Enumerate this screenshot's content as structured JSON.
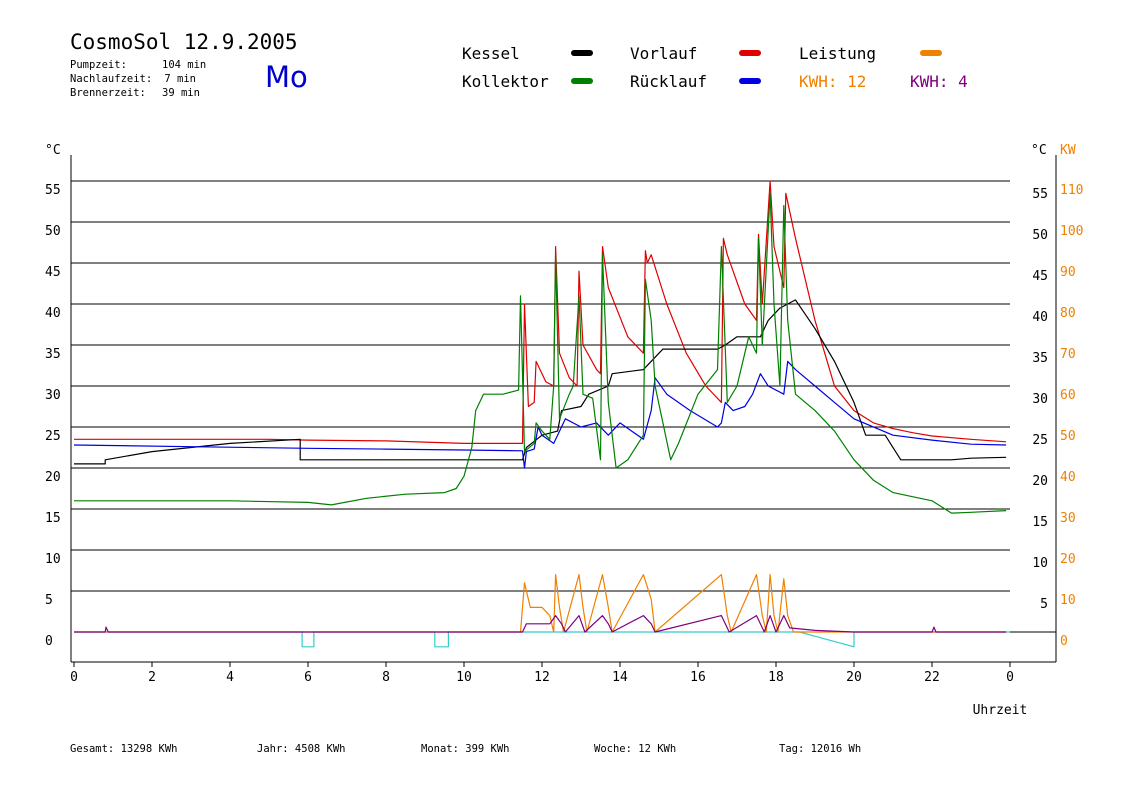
{
  "header": {
    "title": "CosmoSol 12.9.2005",
    "day": "Mo",
    "rows": [
      {
        "label": "Pumpzeit:",
        "value": "104 min"
      },
      {
        "label": "Nachlaufzeit:",
        "value": "7 min"
      },
      {
        "label": "Brennerzeit:",
        "value": "39 min"
      }
    ]
  },
  "legend": {
    "kessel": "Kessel",
    "kollektor": "Kollektor",
    "vorlauf": "Vorlauf",
    "ruecklauf": "Rücklauf",
    "leistung": "Leistung",
    "kwh1": "KWH: 12",
    "kwh2": "KWH: 4"
  },
  "colors": {
    "kessel": "#000000",
    "kollektor": "#008000",
    "vorlauf": "#e00000",
    "ruecklauf": "#0000e0",
    "leistung": "#f08000",
    "kwh2": "#800080",
    "baseline": "#33cccc"
  },
  "footer": {
    "gesamt": "Gesamt:  13298 KWh",
    "jahr": "Jahr:   4508 KWh",
    "monat": "Monat:    399 KWh",
    "woche": "Woche:     12 KWh",
    "tag": "Tag:  12016 Wh"
  },
  "chart_data": {
    "type": "line",
    "xlabel": "Uhrzeit",
    "ylabel_left": "°C",
    "ylabel_right_c": "°C",
    "ylabel_right_kw": "KW",
    "xlim": [
      0,
      24
    ],
    "ylim": [
      -5,
      60
    ],
    "x_ticks": [
      "0",
      "2",
      "4",
      "6",
      "8",
      "10",
      "12",
      "14",
      "16",
      "18",
      "20",
      "22",
      "0"
    ],
    "y_ticks_left": [
      0,
      5,
      10,
      15,
      20,
      25,
      30,
      35,
      40,
      45,
      50,
      55
    ],
    "y_ticks_right_c": [
      5,
      10,
      15,
      20,
      25,
      30,
      35,
      40,
      45,
      50,
      55
    ],
    "y_ticks_right_kw": [
      0,
      10,
      20,
      30,
      40,
      50,
      60,
      70,
      80,
      90,
      100,
      110
    ],
    "grid": true,
    "series": [
      {
        "name": "Vorlauf",
        "key": "vorlauf",
        "points": [
          [
            0,
            23.5
          ],
          [
            5,
            23.5
          ],
          [
            6,
            23.4
          ],
          [
            8,
            23.3
          ],
          [
            10,
            23
          ],
          [
            11.5,
            23
          ],
          [
            11.55,
            40
          ],
          [
            11.65,
            27.5
          ],
          [
            11.8,
            28
          ],
          [
            11.85,
            33
          ],
          [
            12.1,
            30.5
          ],
          [
            12.3,
            30
          ],
          [
            12.35,
            47
          ],
          [
            12.45,
            34
          ],
          [
            12.7,
            31
          ],
          [
            12.9,
            30
          ],
          [
            12.95,
            44
          ],
          [
            13.05,
            35
          ],
          [
            13.4,
            32
          ],
          [
            13.5,
            31.5
          ],
          [
            13.55,
            47
          ],
          [
            13.7,
            42
          ],
          [
            14.2,
            36
          ],
          [
            14.6,
            34
          ],
          [
            14.65,
            46.5
          ],
          [
            14.7,
            45
          ],
          [
            14.8,
            46
          ],
          [
            15.2,
            40
          ],
          [
            15.7,
            34
          ],
          [
            16.2,
            30
          ],
          [
            16.6,
            28
          ],
          [
            16.65,
            48
          ],
          [
            16.75,
            46
          ],
          [
            17.2,
            40
          ],
          [
            17.5,
            38
          ],
          [
            17.55,
            48.5
          ],
          [
            17.65,
            40
          ],
          [
            17.85,
            55
          ],
          [
            17.95,
            47
          ],
          [
            18.2,
            42
          ],
          [
            18.25,
            53.5
          ],
          [
            18.5,
            48
          ],
          [
            19,
            38
          ],
          [
            19.5,
            30
          ],
          [
            20,
            27
          ],
          [
            20.5,
            25.5
          ],
          [
            21,
            24.8
          ],
          [
            21.5,
            24.3
          ],
          [
            22,
            23.9
          ],
          [
            23,
            23.5
          ],
          [
            23.9,
            23.2
          ]
        ]
      },
      {
        "name": "Kessel",
        "key": "kessel",
        "points": [
          [
            0,
            20.5
          ],
          [
            0.8,
            20.5
          ],
          [
            0.8,
            21
          ],
          [
            2,
            22
          ],
          [
            4,
            23
          ],
          [
            5.8,
            23.5
          ],
          [
            5.8,
            21
          ],
          [
            7,
            21
          ],
          [
            10,
            21
          ],
          [
            11.5,
            21
          ],
          [
            11.6,
            22.5
          ],
          [
            12,
            24
          ],
          [
            12.4,
            24.5
          ],
          [
            12.5,
            27
          ],
          [
            13,
            27.5
          ],
          [
            13.2,
            29
          ],
          [
            13.7,
            30
          ],
          [
            13.8,
            31.5
          ],
          [
            14.6,
            32
          ],
          [
            15.1,
            34.5
          ],
          [
            16.5,
            34.5
          ],
          [
            16.7,
            35
          ],
          [
            17,
            36
          ],
          [
            17.6,
            36
          ],
          [
            17.8,
            38
          ],
          [
            18.1,
            39.5
          ],
          [
            18.5,
            40.5
          ],
          [
            19,
            37
          ],
          [
            19.5,
            33
          ],
          [
            20,
            28
          ],
          [
            20.3,
            24
          ],
          [
            20.8,
            24
          ],
          [
            21.2,
            21
          ],
          [
            22,
            21
          ],
          [
            22.5,
            21
          ],
          [
            23,
            21.2
          ],
          [
            23.9,
            21.3
          ]
        ]
      },
      {
        "name": "Rücklauf",
        "key": "ruecklauf",
        "points": [
          [
            0,
            22.8
          ],
          [
            3,
            22.6
          ],
          [
            6,
            22.4
          ],
          [
            8,
            22.3
          ],
          [
            10,
            22.2
          ],
          [
            11.5,
            22.1
          ],
          [
            11.55,
            20
          ],
          [
            11.6,
            22
          ],
          [
            11.8,
            22.3
          ],
          [
            11.9,
            25
          ],
          [
            12,
            24
          ],
          [
            12.3,
            23
          ],
          [
            12.4,
            24
          ],
          [
            12.6,
            26
          ],
          [
            13,
            25
          ],
          [
            13.4,
            25.5
          ],
          [
            13.7,
            24
          ],
          [
            14,
            25.5
          ],
          [
            14.3,
            24.5
          ],
          [
            14.6,
            23.5
          ],
          [
            14.8,
            27
          ],
          [
            14.9,
            31
          ],
          [
            15.2,
            29
          ],
          [
            15.8,
            27
          ],
          [
            16.5,
            25
          ],
          [
            16.6,
            25.5
          ],
          [
            16.7,
            28
          ],
          [
            16.9,
            27
          ],
          [
            17.2,
            27.5
          ],
          [
            17.4,
            29
          ],
          [
            17.6,
            31.5
          ],
          [
            17.8,
            30
          ],
          [
            18.2,
            29
          ],
          [
            18.3,
            33
          ],
          [
            18.5,
            32
          ],
          [
            19,
            30
          ],
          [
            19.5,
            28
          ],
          [
            20,
            26
          ],
          [
            21,
            24
          ],
          [
            22,
            23.4
          ],
          [
            23,
            22.9
          ],
          [
            23.9,
            22.8
          ]
        ]
      },
      {
        "name": "Kollektor",
        "key": "kollektor",
        "points": [
          [
            0,
            16
          ],
          [
            2,
            16
          ],
          [
            4,
            16
          ],
          [
            6,
            15.8
          ],
          [
            6.6,
            15.5
          ],
          [
            7.5,
            16.3
          ],
          [
            8.5,
            16.8
          ],
          [
            9.5,
            17
          ],
          [
            9.8,
            17.5
          ],
          [
            10,
            19
          ],
          [
            10.2,
            22.5
          ],
          [
            10.3,
            27
          ],
          [
            10.5,
            29
          ],
          [
            11,
            29
          ],
          [
            11.4,
            29.5
          ],
          [
            11.45,
            41
          ],
          [
            11.55,
            22
          ],
          [
            11.8,
            23
          ],
          [
            11.85,
            25.5
          ],
          [
            12,
            24.5
          ],
          [
            12.2,
            23.5
          ],
          [
            12.3,
            30
          ],
          [
            12.35,
            46
          ],
          [
            12.45,
            26
          ],
          [
            12.7,
            29
          ],
          [
            12.8,
            30
          ],
          [
            12.95,
            41
          ],
          [
            13.05,
            29
          ],
          [
            13.3,
            28.5
          ],
          [
            13.5,
            21
          ],
          [
            13.55,
            46
          ],
          [
            13.7,
            28
          ],
          [
            13.9,
            20
          ],
          [
            14.2,
            21
          ],
          [
            14.6,
            24
          ],
          [
            14.65,
            43
          ],
          [
            14.8,
            38
          ],
          [
            14.9,
            30
          ],
          [
            15.3,
            21
          ],
          [
            15.5,
            23
          ],
          [
            16,
            29
          ],
          [
            16.5,
            32
          ],
          [
            16.6,
            47
          ],
          [
            16.75,
            28
          ],
          [
            17,
            30
          ],
          [
            17.3,
            36
          ],
          [
            17.5,
            34
          ],
          [
            17.55,
            48
          ],
          [
            17.65,
            35
          ],
          [
            17.85,
            53.5
          ],
          [
            17.95,
            40
          ],
          [
            18.1,
            30
          ],
          [
            18.2,
            52
          ],
          [
            18.3,
            38
          ],
          [
            18.5,
            29
          ],
          [
            19,
            27
          ],
          [
            19.5,
            24.5
          ],
          [
            20,
            21
          ],
          [
            20.5,
            18.5
          ],
          [
            21,
            17
          ],
          [
            22,
            16
          ],
          [
            22.5,
            14.5
          ],
          [
            23,
            14.6
          ],
          [
            23.9,
            14.8
          ]
        ]
      },
      {
        "name": "Leistung",
        "key": "leistung",
        "points": [
          [
            0,
            0
          ],
          [
            11.45,
            0
          ],
          [
            11.55,
            6
          ],
          [
            11.7,
            3
          ],
          [
            12,
            3
          ],
          [
            12.2,
            2
          ],
          [
            12.3,
            0
          ],
          [
            12.35,
            7
          ],
          [
            12.45,
            3
          ],
          [
            12.55,
            0
          ],
          [
            12.95,
            7
          ],
          [
            13.05,
            3
          ],
          [
            13.15,
            0
          ],
          [
            13.55,
            7
          ],
          [
            13.7,
            3
          ],
          [
            13.8,
            0
          ],
          [
            14.6,
            7
          ],
          [
            14.8,
            4
          ],
          [
            14.9,
            0
          ],
          [
            16.6,
            7
          ],
          [
            16.75,
            2
          ],
          [
            16.85,
            0
          ],
          [
            17.5,
            7
          ],
          [
            17.65,
            2
          ],
          [
            17.75,
            0
          ],
          [
            17.85,
            7
          ],
          [
            17.95,
            2
          ],
          [
            18.05,
            0
          ],
          [
            18.2,
            6.5
          ],
          [
            18.3,
            2
          ],
          [
            18.45,
            0
          ],
          [
            19.5,
            0
          ],
          [
            20,
            0
          ],
          [
            23.9,
            0
          ]
        ]
      },
      {
        "name": "KWH: 4",
        "key": "kwh2",
        "points": [
          [
            0,
            0
          ],
          [
            0.8,
            0
          ],
          [
            0.82,
            0.6
          ],
          [
            0.88,
            0
          ],
          [
            11.5,
            0
          ],
          [
            11.6,
            1
          ],
          [
            12.2,
            1
          ],
          [
            12.35,
            2
          ],
          [
            12.5,
            1
          ],
          [
            12.6,
            0
          ],
          [
            12.95,
            2
          ],
          [
            13.1,
            0
          ],
          [
            13.55,
            2
          ],
          [
            13.7,
            1
          ],
          [
            13.8,
            0
          ],
          [
            14.6,
            2
          ],
          [
            14.8,
            1
          ],
          [
            14.9,
            0
          ],
          [
            16.6,
            2
          ],
          [
            16.8,
            0
          ],
          [
            17.5,
            2
          ],
          [
            17.7,
            0
          ],
          [
            17.85,
            2
          ],
          [
            18.0,
            0
          ],
          [
            18.2,
            2
          ],
          [
            18.35,
            0.5
          ],
          [
            19,
            0.2
          ],
          [
            20,
            0
          ],
          [
            22.0,
            0
          ],
          [
            22.05,
            0.6
          ],
          [
            22.1,
            0
          ],
          [
            23.9,
            0
          ]
        ]
      }
    ],
    "baseline": {
      "name": "Leistung-Grundlinie",
      "points": [
        [
          0,
          0
        ],
        [
          5.85,
          0
        ],
        [
          5.85,
          -1.8
        ],
        [
          6.15,
          -1.8
        ],
        [
          6.15,
          0
        ],
        [
          9.25,
          0
        ],
        [
          9.25,
          -1.8
        ],
        [
          9.6,
          -1.8
        ],
        [
          9.6,
          0
        ],
        [
          18.6,
          0
        ],
        [
          20,
          -1.8
        ],
        [
          20,
          0
        ],
        [
          24,
          0
        ]
      ]
    }
  }
}
